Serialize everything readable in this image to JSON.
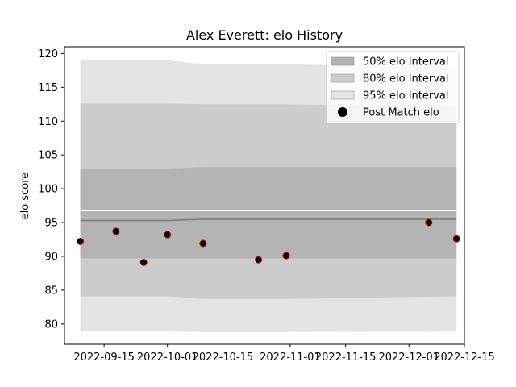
{
  "chart_data": {
    "type": "line",
    "title": "Alex Everett: elo History",
    "xlabel": "",
    "ylabel": "elo score",
    "x_ticks": [
      "2022-09-15",
      "2022-10-01",
      "2022-10-15",
      "2022-11-01",
      "2022-11-15",
      "2022-12-01",
      "2022-12-15"
    ],
    "y_ticks": [
      "80",
      "85",
      "90",
      "95",
      "100",
      "105",
      "110",
      "115",
      "120"
    ],
    "xlim": [
      "2022-09-05",
      "2022-12-15"
    ],
    "ylim": [
      77,
      121
    ],
    "legend_position": "top-right",
    "band_colors": {
      "b50": "#b4b4b4",
      "b80": "#cccccc",
      "b95": "#e4e4e4"
    },
    "mean_color": "#808080",
    "point_face": "#000000",
    "point_edge": "#cc0000",
    "series": [
      {
        "name": "50% elo Interval",
        "kind": "band",
        "x": [
          "2022-09-09",
          "2022-10-01",
          "2022-10-10",
          "2022-10-31",
          "2022-12-13"
        ],
        "lower": [
          89.7,
          89.7,
          89.7,
          89.7,
          89.7
        ],
        "upper": [
          103.0,
          103.0,
          103.2,
          103.2,
          103.2
        ]
      },
      {
        "name": "80% elo Interval",
        "kind": "band",
        "x": [
          "2022-09-09",
          "2022-10-01",
          "2022-10-10",
          "2022-10-31",
          "2022-12-13"
        ],
        "lower": [
          84.1,
          84.1,
          83.7,
          83.7,
          84.1
        ],
        "upper": [
          112.6,
          112.6,
          112.5,
          112.5,
          112.1
        ]
      },
      {
        "name": "95% elo Interval",
        "kind": "band",
        "x": [
          "2022-09-09",
          "2022-10-01",
          "2022-10-10",
          "2022-10-31",
          "2022-12-13"
        ],
        "lower": [
          78.9,
          78.9,
          78.8,
          78.8,
          78.9
        ],
        "upper": [
          119.0,
          119.0,
          118.4,
          118.4,
          118.0
        ]
      },
      {
        "name": "",
        "kind": "mean",
        "x": [
          "2022-09-09",
          "2022-10-01",
          "2022-10-10",
          "2022-12-13"
        ],
        "y": [
          95.3,
          95.3,
          95.5,
          95.5
        ]
      },
      {
        "name": "Post Match elo",
        "kind": "points",
        "x": [
          "2022-09-09",
          "2022-09-18",
          "2022-09-25",
          "2022-10-01",
          "2022-10-10",
          "2022-10-24",
          "2022-10-31",
          "2022-12-06",
          "2022-12-13"
        ],
        "y": [
          92.2,
          93.7,
          89.1,
          93.2,
          91.9,
          89.5,
          90.1,
          95.0,
          92.6
        ]
      }
    ]
  }
}
